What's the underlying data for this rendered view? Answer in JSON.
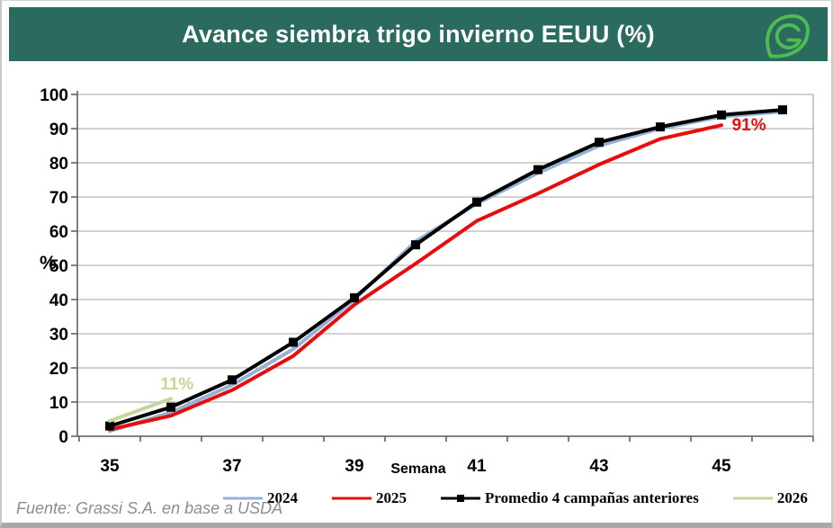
{
  "window": {
    "background": "#ffffff",
    "border_color": "#c9c9c9"
  },
  "header": {
    "title": "Avance siembra trigo invierno EEUU (%)",
    "background_color": "#2b6b5f",
    "logo_icon": "grassi-leaf-logo",
    "logo_color": "#4fbc52"
  },
  "chart_data": {
    "type": "line",
    "title": "Avance siembra trigo invierno EEUU (%)",
    "xlabel": "Semana",
    "ylabel": "%",
    "x": [
      35,
      36,
      37,
      38,
      39,
      40,
      41,
      42,
      43,
      44,
      45,
      46
    ],
    "x_tick_labels": [
      "35",
      "37",
      "39",
      "41",
      "43",
      "45"
    ],
    "y_ticks": [
      0,
      10,
      20,
      30,
      40,
      50,
      60,
      70,
      80,
      90,
      100
    ],
    "ylim": [
      0,
      100
    ],
    "grid": true,
    "grid_color": "#a6a6a6",
    "axis_color": "#595959",
    "legend_position": "bottom-center",
    "series": [
      {
        "name": "2024",
        "color": "#95b3d7",
        "marker": "none",
        "values": [
          1.5,
          7,
          15,
          25.5,
          40,
          57,
          68,
          77,
          85,
          90,
          93.5,
          95
        ]
      },
      {
        "name": "2025",
        "color": "#e80d0d",
        "marker": "none",
        "values": [
          2,
          6,
          13.5,
          23.5,
          38.5,
          50.5,
          63,
          71,
          79.5,
          87,
          91
        ]
      },
      {
        "name": "Promedio 4 campañas anteriores",
        "color": "#000000",
        "marker": "square",
        "values": [
          3,
          8.5,
          16.5,
          27.5,
          40.5,
          56,
          68.5,
          78,
          86,
          90.5,
          94,
          95.5
        ]
      },
      {
        "name": "2026",
        "color": "#c3d69b",
        "marker": "none",
        "values": [
          4.5,
          11
        ]
      }
    ],
    "annotations": [
      {
        "text": "11%",
        "color": "#c3d69b",
        "week": 36.1,
        "value": 15.5
      },
      {
        "text": "91%",
        "color": "#e80d0d",
        "week": 45.45,
        "value": 91.3
      }
    ]
  },
  "footer": {
    "source": "Fuente: Grassi S.A. en base a USDA"
  }
}
